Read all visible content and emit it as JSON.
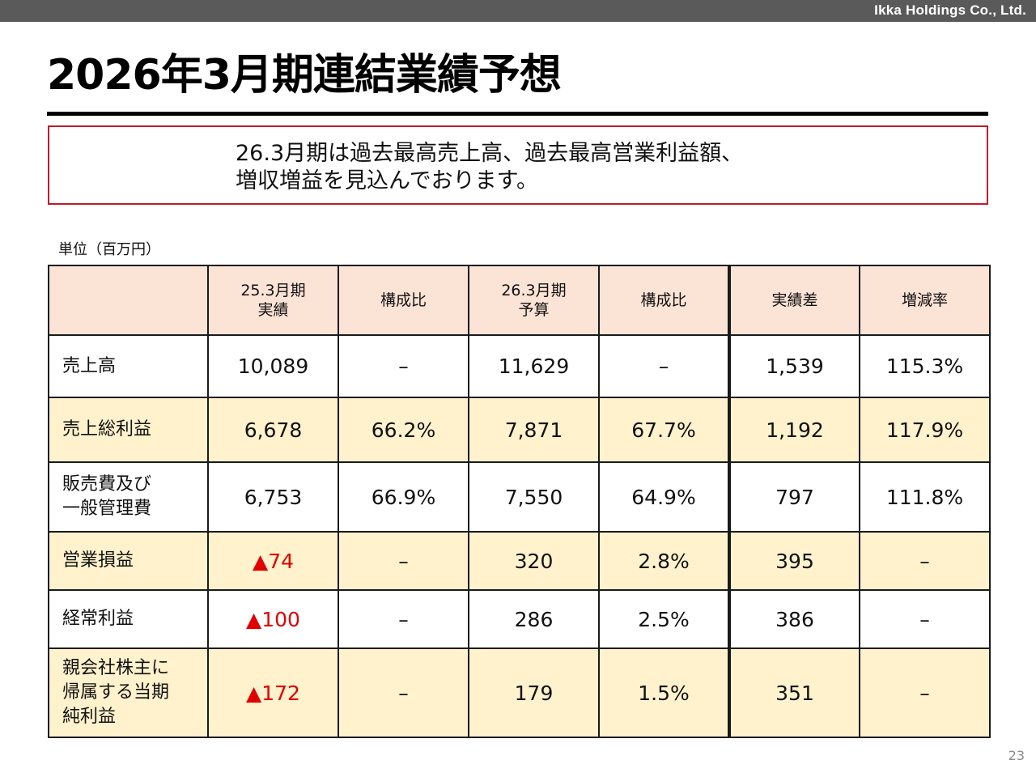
{
  "header": {
    "company": "Ikka Holdings Co., Ltd."
  },
  "title": "2026年3月期連結業績予想",
  "callout": {
    "line1": "26.3月期は過去最高売上高、過去最高営業利益額、",
    "line2": "増収増益を見込んでおります。"
  },
  "unit_label": "単位（百万円）",
  "table": {
    "headers": {
      "col1_line1": "25.3月期",
      "col1_line2": "実績",
      "col2": "構成比",
      "col3_line1": "26.3月期",
      "col3_line2": "予算",
      "col4": "構成比",
      "col5": "実績差",
      "col6": "増減率"
    },
    "rows": [
      {
        "label_lines": [
          "売上高"
        ],
        "values": [
          "10,089",
          "–",
          "11,629",
          "–",
          "1,539",
          "115.3%"
        ]
      },
      {
        "label_lines": [
          "売上総利益"
        ],
        "values": [
          "6,678",
          "66.2%",
          "7,871",
          "67.7%",
          "1,192",
          "117.9%"
        ]
      },
      {
        "label_lines": [
          "販売費及び",
          "一般管理費"
        ],
        "values": [
          "6,753",
          "66.9%",
          "7,550",
          "64.9%",
          "797",
          "111.8%"
        ]
      },
      {
        "label_lines": [
          "営業損益"
        ],
        "values": [
          "▲74",
          "–",
          "320",
          "2.8%",
          "395",
          "–"
        ]
      },
      {
        "label_lines": [
          "経常利益"
        ],
        "values": [
          "▲100",
          "–",
          "286",
          "2.5%",
          "386",
          "–"
        ]
      },
      {
        "label_lines": [
          "親会社株主に",
          "帰属する当期",
          "純利益"
        ],
        "values": [
          "▲172",
          "–",
          "179",
          "1.5%",
          "351",
          "–"
        ]
      }
    ]
  },
  "page_number": "23",
  "colors": {
    "header_fill": "#fbe3d6",
    "shaded_row_fill": "#fff2cc",
    "callout_border": "#c0192b",
    "negative_text": "#e00000",
    "top_bar": "#5a5a5a"
  }
}
